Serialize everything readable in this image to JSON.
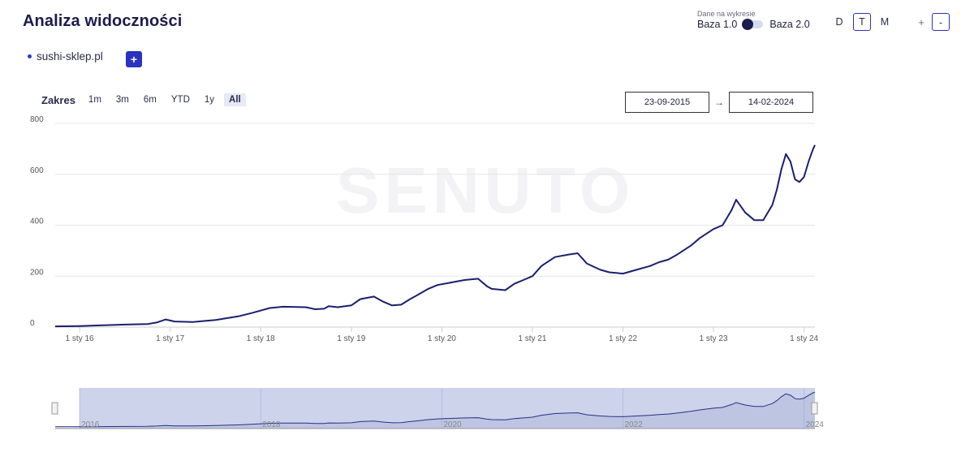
{
  "header": {
    "title": "Analiza widoczności"
  },
  "domains": [
    {
      "name": "sushi-sklep.pl",
      "color": "#2b3cc7"
    }
  ],
  "add_button": {
    "label": "+"
  },
  "base_toggle": {
    "caption": "Dane na wykresie",
    "left_label": "Baza 1.0",
    "right_label": "Baza 2.0"
  },
  "period_buttons": [
    {
      "label": "D",
      "active": false
    },
    {
      "label": "T",
      "active": true
    },
    {
      "label": "M",
      "active": false
    }
  ],
  "zoom_buttons": [
    {
      "label": "+",
      "active": false
    },
    {
      "label": "-",
      "active": true
    }
  ],
  "range": {
    "title": "Zakres",
    "buttons": [
      {
        "label": "1m",
        "active": false
      },
      {
        "label": "3m",
        "active": false
      },
      {
        "label": "6m",
        "active": false
      },
      {
        "label": "YTD",
        "active": false
      },
      {
        "label": "1y",
        "active": false
      },
      {
        "label": "All",
        "active": true
      }
    ],
    "from": "23-09-2015",
    "to": "14-02-2024",
    "arrow": "→"
  },
  "watermark": "SENUTO",
  "chart_data": {
    "type": "line",
    "title": "",
    "xlabel": "",
    "ylabel": "",
    "ylim": [
      0,
      800
    ],
    "yticks": [
      0,
      200,
      400,
      600,
      800
    ],
    "xlim": [
      2015.73,
      2024.12
    ],
    "x_ticks": [
      {
        "x": 2016.0,
        "label": "1 sty 16"
      },
      {
        "x": 2017.0,
        "label": "1 sty 17"
      },
      {
        "x": 2018.0,
        "label": "1 sty 18"
      },
      {
        "x": 2019.0,
        "label": "1 sty 19"
      },
      {
        "x": 2020.0,
        "label": "1 sty 20"
      },
      {
        "x": 2021.0,
        "label": "1 sty 21"
      },
      {
        "x": 2022.0,
        "label": "1 sty 22"
      },
      {
        "x": 2023.0,
        "label": "1 sty 23"
      },
      {
        "x": 2024.0,
        "label": "1 sty 24"
      }
    ],
    "navigator_ticks": [
      {
        "x": 2016.0,
        "label": "2016"
      },
      {
        "x": 2018.0,
        "label": "2018"
      },
      {
        "x": 2020.0,
        "label": "2020"
      },
      {
        "x": 2022.0,
        "label": "2022"
      },
      {
        "x": 2024.0,
        "label": "2024"
      }
    ],
    "series": [
      {
        "name": "sushi-sklep.pl",
        "color": "#1b1f6e",
        "x": [
          2015.73,
          2016.0,
          2016.25,
          2016.5,
          2016.75,
          2016.85,
          2016.95,
          2017.05,
          2017.25,
          2017.5,
          2017.75,
          2017.9,
          2018.1,
          2018.25,
          2018.5,
          2018.6,
          2018.7,
          2018.75,
          2018.85,
          2019.0,
          2019.1,
          2019.25,
          2019.35,
          2019.45,
          2019.55,
          2019.65,
          2019.75,
          2019.85,
          2019.95,
          2020.1,
          2020.25,
          2020.4,
          2020.5,
          2020.55,
          2020.7,
          2020.8,
          2020.9,
          2021.0,
          2021.1,
          2021.25,
          2021.4,
          2021.5,
          2021.6,
          2021.75,
          2021.85,
          2022.0,
          2022.15,
          2022.3,
          2022.4,
          2022.5,
          2022.6,
          2022.75,
          2022.85,
          2023.0,
          2023.1,
          2023.2,
          2023.25,
          2023.35,
          2023.45,
          2023.55,
          2023.65,
          2023.7,
          2023.75,
          2023.8,
          2023.85,
          2023.9,
          2023.95,
          2024.0,
          2024.05,
          2024.1,
          2024.12
        ],
        "values": [
          3,
          4,
          7,
          10,
          12,
          18,
          30,
          22,
          20,
          28,
          42,
          55,
          75,
          80,
          78,
          70,
          72,
          82,
          78,
          85,
          110,
          120,
          100,
          85,
          88,
          110,
          130,
          150,
          165,
          175,
          185,
          190,
          160,
          150,
          145,
          170,
          185,
          200,
          240,
          275,
          285,
          290,
          250,
          225,
          215,
          210,
          225,
          240,
          255,
          265,
          285,
          320,
          350,
          385,
          400,
          460,
          500,
          450,
          420,
          420,
          480,
          540,
          620,
          680,
          650,
          580,
          570,
          590,
          650,
          700,
          715
        ]
      }
    ]
  }
}
